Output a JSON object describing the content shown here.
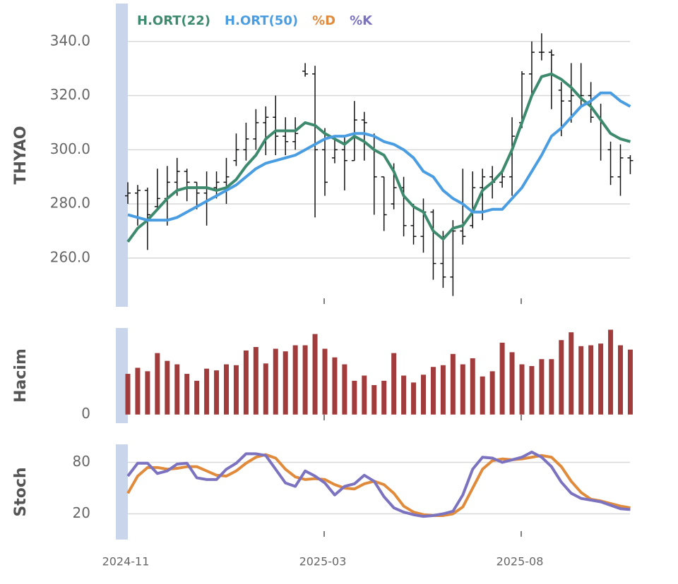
{
  "chart_data": [
    {
      "type": "ohlc",
      "ylabel": "THYAO",
      "color": "#111111",
      "grid": true,
      "ylim": [
        242,
        354
      ],
      "yticks": [
        {
          "value": 260,
          "label": "260.0"
        },
        {
          "value": 280,
          "label": "280.0"
        },
        {
          "value": 300,
          "label": "300.0"
        },
        {
          "value": 320,
          "label": "320.0"
        },
        {
          "value": 340,
          "label": "340.0"
        }
      ],
      "open": [
        283,
        284,
        285,
        279,
        282,
        288,
        292,
        288,
        284,
        286,
        288,
        296,
        300,
        304,
        310,
        312,
        305,
        303,
        329,
        328,
        300,
        297,
        300,
        296,
        311,
        305,
        290,
        280,
        286,
        272,
        268,
        277,
        258,
        253,
        270,
        272,
        286,
        290,
        288,
        290,
        310,
        328,
        336,
        336,
        322,
        318,
        320,
        320,
        312,
        300,
        290,
        297
      ],
      "high": [
        288,
        287,
        286,
        293,
        294,
        297,
        293,
        288,
        292,
        292,
        297,
        306,
        310,
        315,
        316,
        320,
        312,
        312,
        332,
        331,
        308,
        305,
        305,
        318,
        314,
        306,
        290,
        295,
        290,
        280,
        282,
        278,
        270,
        274,
        293,
        292,
        293,
        294,
        292,
        312,
        329,
        340,
        343,
        337,
        325,
        332,
        332,
        325,
        317,
        303,
        302,
        298
      ],
      "low": [
        280,
        272,
        263,
        278,
        272,
        283,
        281,
        278,
        272,
        282,
        280,
        294,
        296,
        300,
        298,
        298,
        298,
        300,
        327,
        275,
        283,
        295,
        285,
        296,
        296,
        276,
        270,
        278,
        268,
        265,
        262,
        252,
        249,
        246,
        265,
        271,
        274,
        282,
        286,
        283,
        308,
        320,
        333,
        315,
        305,
        310,
        316,
        310,
        296,
        287,
        283,
        291
      ],
      "close": [
        284,
        285,
        276,
        282,
        288,
        292,
        288,
        284,
        286,
        288,
        290,
        300,
        304,
        310,
        312,
        305,
        303,
        306,
        328,
        300,
        288,
        300,
        296,
        311,
        310,
        290,
        276,
        286,
        272,
        268,
        277,
        258,
        253,
        270,
        268,
        286,
        290,
        288,
        290,
        305,
        328,
        336,
        336,
        335,
        318,
        320,
        320,
        312,
        310,
        290,
        297,
        296
      ],
      "series": [
        {
          "name": "H.ORT(22)",
          "color": "#3d8a6e",
          "values": [
            266,
            271,
            274,
            278,
            282,
            285,
            286,
            286,
            286,
            285,
            286,
            289,
            294,
            298,
            304,
            307,
            307,
            307,
            310,
            309,
            306,
            304,
            302,
            305,
            303,
            300,
            298,
            292,
            283,
            279,
            277,
            270,
            267,
            271,
            272,
            277,
            285,
            288,
            292,
            300,
            310,
            320,
            327,
            328,
            326,
            323,
            319,
            316,
            311,
            306,
            304,
            303
          ]
        },
        {
          "name": "H.ORT(50)",
          "color": "#4a9de0",
          "values": [
            276,
            275,
            274,
            274,
            274,
            275,
            277,
            279,
            281,
            283,
            285,
            287,
            290,
            293,
            295,
            296,
            297,
            298,
            300,
            302,
            304,
            305,
            305,
            306,
            306,
            305,
            303,
            302,
            300,
            297,
            292,
            290,
            285,
            282,
            280,
            277,
            277,
            278,
            278,
            282,
            286,
            292,
            298,
            305,
            308,
            312,
            316,
            318,
            321,
            321,
            318,
            316
          ]
        }
      ]
    },
    {
      "type": "bar",
      "ylabel": "Hacim",
      "color": "#a23b3b",
      "ylim": [
        -10,
        100
      ],
      "yticks": [
        0
      ],
      "values": [
        47,
        54,
        50,
        71,
        62,
        58,
        47,
        39,
        53,
        51,
        58,
        57,
        74,
        78,
        59,
        76,
        73,
        80,
        80,
        93,
        76,
        66,
        58,
        39,
        45,
        34,
        39,
        71,
        45,
        37,
        46,
        55,
        57,
        70,
        58,
        65,
        44,
        50,
        83,
        72,
        58,
        56,
        64,
        64,
        86,
        95,
        79,
        80,
        82,
        98,
        80,
        75
      ]
    },
    {
      "type": "line",
      "ylabel": "Stoch",
      "grid": true,
      "ylim": [
        -10,
        101
      ],
      "yticks": [
        20,
        80
      ],
      "categories": [
        "2024-11",
        null,
        null,
        null,
        null,
        null,
        null,
        null,
        null,
        null,
        null,
        null,
        null,
        null,
        null,
        null,
        null,
        null,
        null,
        null,
        "2025-03",
        null,
        null,
        null,
        null,
        null,
        null,
        null,
        null,
        null,
        null,
        null,
        null,
        null,
        null,
        null,
        null,
        null,
        null,
        null,
        "2025-08",
        null,
        null,
        null,
        null,
        null,
        null,
        null,
        null,
        null,
        null,
        null
      ],
      "series": [
        {
          "name": "%D",
          "color": "#e08a3c",
          "values": [
            44,
            64,
            74,
            74,
            72,
            73,
            75,
            75,
            70,
            65,
            64,
            70,
            79,
            86,
            89,
            85,
            72,
            63,
            60,
            61,
            60,
            54,
            50,
            49,
            55,
            58,
            54,
            44,
            29,
            22,
            19,
            18,
            18,
            20,
            28,
            50,
            72,
            82,
            84,
            83,
            84,
            86,
            88,
            86,
            75,
            58,
            45,
            37,
            35,
            32,
            29,
            27
          ]
        },
        {
          "name": "%K",
          "color": "#7b72c0",
          "values": [
            64,
            79,
            79,
            67,
            70,
            78,
            79,
            62,
            60,
            60,
            72,
            79,
            90,
            90,
            88,
            72,
            56,
            52,
            70,
            64,
            56,
            42,
            52,
            55,
            65,
            58,
            40,
            27,
            22,
            19,
            17,
            18,
            20,
            23,
            42,
            72,
            86,
            85,
            80,
            83,
            86,
            92,
            86,
            75,
            57,
            44,
            38,
            36,
            34,
            30,
            26,
            25
          ]
        }
      ]
    }
  ]
}
